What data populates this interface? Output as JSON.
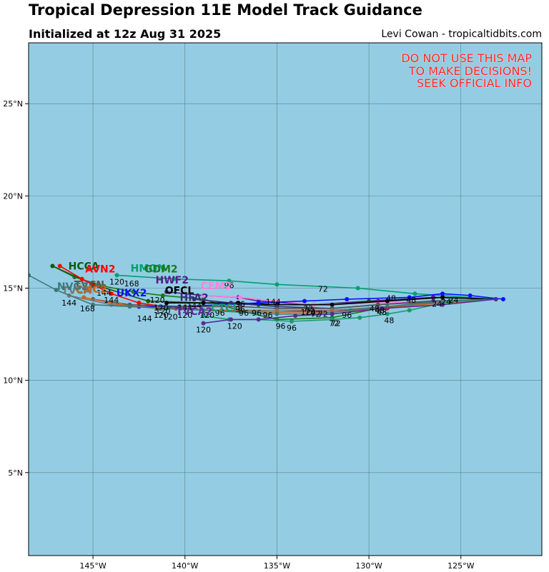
{
  "title": "Tropical Depression 11E Model Track Guidance",
  "subtitle": "Initialized at 12z Aug 31 2025",
  "credit": "Levi Cowan - tropicaltidbits.com",
  "warning": [
    "DO NOT USE THIS MAP",
    "TO MAKE DECISIONS!",
    "SEEK OFFICIAL INFO"
  ],
  "colors": {
    "ocean": "#94cde3",
    "grid": "#5a7e8c",
    "frame": "#000000",
    "warning": "#ff2020"
  },
  "chart_data": {
    "type": "map",
    "lon_range": [
      -148.5,
      -120.6
    ],
    "lat_range": [
      0.5,
      28.3
    ],
    "grid": true,
    "x_ticks": [
      {
        "lon": -145,
        "label": "145°W"
      },
      {
        "lon": -140,
        "label": "140°W"
      },
      {
        "lon": -135,
        "label": "135°W"
      },
      {
        "lon": -130,
        "label": "130°W"
      },
      {
        "lon": -125,
        "label": "125°W"
      }
    ],
    "y_ticks": [
      {
        "lat": 5,
        "label": "5°N"
      },
      {
        "lat": 10,
        "label": "10°N"
      },
      {
        "lat": 15,
        "label": "15°N"
      },
      {
        "lat": 20,
        "label": "20°N"
      },
      {
        "lat": 25,
        "label": "25°N"
      }
    ],
    "tracks": [
      {
        "name": "HMON",
        "color": "#00a070",
        "points": [
          [
            -123.1,
            14.4
          ],
          [
            -127.5,
            14.7
          ],
          [
            -130.6,
            15.0
          ],
          [
            -135,
            15.2
          ],
          [
            -137.6,
            15.4
          ],
          [
            -140.6,
            15.5
          ],
          [
            -143.7,
            15.7
          ]
        ],
        "name_at": [
          -142.0,
          15.9
        ],
        "hour_labels": [
          {
            "text": "96",
            "lon": -137.6,
            "lat": 15.0
          },
          {
            "text": "72",
            "lon": -132.5,
            "lat": 14.8
          },
          {
            "text": "48",
            "lon": -127.7,
            "lat": 14.2
          }
        ]
      },
      {
        "name": "GDM2",
        "color": "#1a7a1a",
        "points": [
          [
            -123.1,
            14.4
          ],
          [
            -126.5,
            14.3
          ],
          [
            -129.5,
            13.9
          ],
          [
            -132,
            13.4
          ],
          [
            -135,
            13.3
          ],
          [
            -137.1,
            13.8
          ],
          [
            -139,
            14.4
          ],
          [
            -141.2,
            14.6
          ],
          [
            -142.8,
            14.8
          ],
          [
            -144.4,
            15.1
          ],
          [
            -146,
            15.6
          ],
          [
            -147.2,
            16.2
          ]
        ],
        "name_at": [
          -141.3,
          15.85
        ],
        "hour_labels": [
          {
            "text": "168",
            "lon": -142.9,
            "lat": 15.1
          },
          {
            "text": "120",
            "lon": -143.7,
            "lat": 15.2
          },
          {
            "text": "144",
            "lon": -144.4,
            "lat": 14.6
          }
        ]
      },
      {
        "name": "HCCA",
        "color": "#105a10",
        "points": [
          [
            -123.1,
            14.4
          ],
          [
            -126.5,
            14.5
          ],
          [
            -130,
            14.3
          ],
          [
            -133,
            14.1
          ],
          [
            -136,
            14.1
          ],
          [
            -139,
            14.2
          ],
          [
            -142,
            14.3
          ],
          [
            -145,
            15.2
          ],
          [
            -147.2,
            16.2
          ]
        ],
        "name_at": [
          -145.5,
          16.0
        ],
        "hour_labels": []
      },
      {
        "name": "AVN2",
        "color": "#ff0000",
        "points": [
          [
            -123.1,
            14.4
          ],
          [
            -126,
            14.3
          ],
          [
            -129,
            13.9
          ],
          [
            -132,
            13.8
          ],
          [
            -135,
            13.7
          ],
          [
            -138,
            13.8
          ],
          [
            -140.5,
            13.9
          ],
          [
            -142.5,
            14.2
          ],
          [
            -144,
            14.7
          ],
          [
            -145.6,
            15.5
          ],
          [
            -146.8,
            16.2
          ]
        ],
        "name_at": [
          -144.6,
          15.85
        ],
        "hour_labels": []
      },
      {
        "name": "HWF2",
        "color": "#5a1a8a",
        "points": [
          [
            -123.1,
            14.4
          ],
          [
            -126.5,
            14.5
          ],
          [
            -129.5,
            14.3
          ],
          [
            -133,
            14.1
          ],
          [
            -136,
            14.3
          ],
          [
            -137.1,
            14.5
          ],
          [
            -139,
            14.6
          ],
          [
            -141,
            14.8
          ]
        ],
        "name_at": [
          -140.7,
          15.25
        ],
        "hour_labels": []
      },
      {
        "name": "CEM2",
        "color": "#ff80e0",
        "points": [
          [
            -123.1,
            14.4
          ],
          [
            -126.5,
            14.3
          ],
          [
            -129.5,
            14.2
          ],
          [
            -133,
            14.1
          ],
          [
            -135,
            14.3
          ],
          [
            -137,
            14.5
          ],
          [
            -139,
            14.6
          ]
        ],
        "name_at": [
          -138.3,
          14.95
        ],
        "hour_labels": []
      },
      {
        "name": "OFCL",
        "color": "#000000",
        "points": [
          [
            -123.1,
            14.4
          ],
          [
            -126,
            14.5
          ],
          [
            -129,
            14.3
          ],
          [
            -132,
            14.1
          ],
          [
            -135,
            14.1
          ],
          [
            -137.1,
            14.2
          ],
          [
            -139,
            14.2
          ],
          [
            -141,
            14.2
          ]
        ],
        "name_at": [
          -140.3,
          14.7
        ],
        "hour_labels": [
          {
            "text": "120",
            "lon": -141.5,
            "lat": 14.2
          }
        ]
      },
      {
        "name": "HFA2",
        "color": "#3a2a7a",
        "points": [
          [
            -123.1,
            14.4
          ],
          [
            -126.5,
            14.3
          ],
          [
            -129.5,
            14.1
          ],
          [
            -132,
            13.9
          ],
          [
            -135,
            14.0
          ],
          [
            -137.5,
            14.2
          ],
          [
            -139.5,
            14.4
          ]
        ],
        "name_at": [
          -139.5,
          14.3
        ],
        "hour_labels": []
      },
      {
        "name": "UKX2",
        "color": "#0a10ff",
        "points": [
          [
            -122.7,
            14.4
          ],
          [
            -124.5,
            14.6
          ],
          [
            -126,
            14.7
          ],
          [
            -127.8,
            14.5
          ],
          [
            -131.2,
            14.4
          ],
          [
            -133.5,
            14.3
          ],
          [
            -136,
            14.2
          ],
          [
            -138,
            14.1
          ],
          [
            -140.3,
            14.0
          ],
          [
            -142.5,
            14.0
          ]
        ],
        "name_at": [
          -142.9,
          14.55
        ],
        "hour_labels": [
          {
            "text": "48",
            "lon": -128.8,
            "lat": 14.3
          },
          {
            "text": "24",
            "lon": -125.4,
            "lat": 14.2
          },
          {
            "text": "144",
            "lon": -142.2,
            "lat": 13.2
          }
        ]
      },
      {
        "name": "TVCN",
        "color": "#555555",
        "points": [
          [
            -123.1,
            14.4
          ],
          [
            -126,
            14.3
          ],
          [
            -129.5,
            14.1
          ],
          [
            -132,
            13.9
          ],
          [
            -135,
            13.9
          ],
          [
            -137,
            14.0
          ],
          [
            -140,
            14.0
          ],
          [
            -143,
            14.1
          ],
          [
            -145,
            14.4
          ]
        ],
        "name_at": [
          -145.2,
          15.0
        ],
        "hour_labels": []
      },
      {
        "name": "TVCA",
        "color": "#777777",
        "points": [
          [
            -123.1,
            14.4
          ],
          [
            -126,
            14.2
          ],
          [
            -129,
            14.0
          ],
          [
            -132,
            13.8
          ],
          [
            -135,
            13.8
          ],
          [
            -138,
            13.8
          ],
          [
            -141,
            13.9
          ],
          [
            -144,
            14.1
          ],
          [
            -146.3,
            14.6
          ]
        ],
        "name_at": [
          -145.9,
          14.7
        ],
        "hour_labels": [
          {
            "text": "144",
            "lon": -146.3,
            "lat": 14.05
          },
          {
            "text": "168",
            "lon": -145.3,
            "lat": 13.75
          }
        ]
      },
      {
        "name": "CMC2",
        "color": "#c86420",
        "points": [
          [
            -123.1,
            14.4
          ],
          [
            -126,
            14.2
          ],
          [
            -129.5,
            13.9
          ],
          [
            -132,
            13.7
          ],
          [
            -135,
            13.7
          ],
          [
            -138,
            13.8
          ],
          [
            -141.5,
            13.9
          ],
          [
            -143.5,
            14.1
          ],
          [
            -145.5,
            14.5
          ]
        ],
        "name_at": [
          -145.1,
          14.75
        ],
        "hour_labels": [
          {
            "text": "144",
            "lon": -144,
            "lat": 14.2
          }
        ]
      },
      {
        "name": "NVG2",
        "color": "#3a7a7a",
        "points": [
          [
            -123.1,
            14.4
          ],
          [
            -126,
            14.3
          ],
          [
            -129,
            14.0
          ],
          [
            -131,
            13.8
          ],
          [
            -133,
            13.6
          ],
          [
            -135,
            13.6
          ],
          [
            -137,
            13.7
          ],
          [
            -139,
            13.8
          ],
          [
            -141,
            13.9
          ],
          [
            -143,
            14.0
          ],
          [
            -145,
            14.1
          ],
          [
            -147,
            14.9
          ],
          [
            -148.5,
            15.7
          ]
        ],
        "name_at": [
          -146.1,
          14.9
        ],
        "hour_labels": []
      },
      {
        "name": "CTCI",
        "color": "#1a9a6a",
        "points": [
          [
            -123.1,
            14.4
          ],
          [
            -125.5,
            14.3
          ],
          [
            -127.8,
            13.8
          ],
          [
            -129,
            13.6
          ],
          [
            -130.5,
            13.4
          ],
          [
            -132,
            13.3
          ],
          [
            -134.2,
            13.2
          ],
          [
            -136,
            13.3
          ],
          [
            -137.6,
            13.3
          ],
          [
            -139,
            13.5
          ]
        ],
        "name_at": [
          -137.9,
          13.75
        ],
        "hour_labels": [
          {
            "text": "48",
            "lon": -128.9,
            "lat": 13.1
          },
          {
            "text": "72",
            "lon": -131.9,
            "lat": 12.95
          },
          {
            "text": "96",
            "lon": -134.8,
            "lat": 12.8
          },
          {
            "text": "120",
            "lon": -137.3,
            "lat": 12.8
          }
        ]
      },
      {
        "name": "TVCA2",
        "color": "#5a2a9a",
        "points": [
          [
            -123.1,
            14.4
          ],
          [
            -126,
            14.1
          ],
          [
            -129.3,
            13.9
          ],
          [
            -132,
            13.6
          ],
          [
            -134,
            13.5
          ],
          [
            -136,
            13.3
          ],
          [
            -137.5,
            13.3
          ],
          [
            -139,
            13.1
          ]
        ],
        "name_at": [
          -139.5,
          13.55
        ],
        "hour_labels": [
          {
            "text": "120",
            "lon": -139,
            "lat": 12.6
          },
          {
            "text": "96",
            "lon": -134.2,
            "lat": 12.7
          },
          {
            "text": "72",
            "lon": -131.8,
            "lat": 12.95
          }
        ]
      }
    ],
    "hour_labels_misc": [
      {
        "text": "24",
        "lon": -125.8,
        "lat": 14.1
      },
      {
        "text": "24",
        "lon": -126.3,
        "lat": 14.0
      },
      {
        "text": "48",
        "lon": -129.4,
        "lat": 13.65
      },
      {
        "text": "48",
        "lon": -129.7,
        "lat": 13.75
      },
      {
        "text": "48",
        "lon": -129.3,
        "lat": 13.55
      },
      {
        "text": "72",
        "lon": -133.3,
        "lat": 13.75
      },
      {
        "text": "72",
        "lon": -133.2,
        "lat": 13.6
      },
      {
        "text": "72",
        "lon": -132.9,
        "lat": 13.45
      },
      {
        "text": "72",
        "lon": -132.5,
        "lat": 13.45
      },
      {
        "text": "96",
        "lon": -131.2,
        "lat": 13.4
      },
      {
        "text": "96",
        "lon": -136.1,
        "lat": 13.5
      },
      {
        "text": "96",
        "lon": -135.5,
        "lat": 13.4
      },
      {
        "text": "96",
        "lon": -136.8,
        "lat": 13.5
      },
      {
        "text": "96",
        "lon": -138.1,
        "lat": 13.5
      },
      {
        "text": "96",
        "lon": -137,
        "lat": 14.0
      },
      {
        "text": "96",
        "lon": -137,
        "lat": 13.7
      },
      {
        "text": "144",
        "lon": -135.2,
        "lat": 14.1
      },
      {
        "text": "120",
        "lon": -133.3,
        "lat": 13.55
      },
      {
        "text": "120",
        "lon": -138.8,
        "lat": 13.4
      },
      {
        "text": "120",
        "lon": -140,
        "lat": 13.4
      },
      {
        "text": "120",
        "lon": -140.8,
        "lat": 13.3
      },
      {
        "text": "120",
        "lon": -141.2,
        "lat": 13.6
      },
      {
        "text": "120",
        "lon": -141.3,
        "lat": 13.8
      },
      {
        "text": "120",
        "lon": -141.3,
        "lat": 13.4
      },
      {
        "text": "144",
        "lon": -140,
        "lat": 13.8
      },
      {
        "text": "144",
        "lon": -139.5,
        "lat": 13.9
      }
    ]
  }
}
